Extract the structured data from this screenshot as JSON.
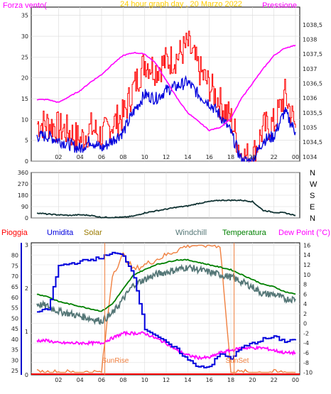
{
  "chart_data": [
    {
      "type": "line",
      "title": "24 hour graph day , 20 Marzo 2022",
      "ylabel_left": "Forza vento(",
      "ylabel_right": "Pressione",
      "x_ticks": [
        "02",
        "04",
        "06",
        "08",
        "10",
        "12",
        "14",
        "16",
        "18",
        "20",
        "22",
        "00"
      ],
      "x": [
        0,
        1,
        2,
        3,
        4,
        5,
        6,
        7,
        8,
        9,
        10,
        11,
        12,
        13,
        14,
        15,
        16,
        17,
        18,
        19,
        20,
        21,
        22,
        23,
        24
      ],
      "ylim_left": [
        0,
        37
      ],
      "yticks_left": [
        0,
        5,
        10,
        15,
        20,
        25,
        30,
        35
      ],
      "ylim_right": [
        1033.85,
        1039.1
      ],
      "yticks_right": [
        "1034",
        "1034,5",
        "1035",
        "1035,5",
        "1036",
        "1036,5",
        "1037",
        "1037,5",
        "1038",
        "1038,5"
      ],
      "yticks_right_values": [
        1034,
        1034.5,
        1035,
        1035.5,
        1036,
        1036.5,
        1037,
        1037.5,
        1038,
        1038.5
      ],
      "grid": true,
      "colors": {
        "gust": "#ff0000",
        "speed": "#0000dd",
        "pressure": "#ff00ff",
        "title": "#ffcc00"
      },
      "series": [
        {
          "key": "gust",
          "axis": "left",
          "values": [
            9,
            9,
            8,
            7,
            5,
            8,
            6,
            9,
            11,
            18,
            24,
            22,
            24,
            25,
            28,
            22,
            18,
            14,
            10,
            1,
            1,
            8,
            9,
            16,
            8
          ]
        },
        {
          "key": "speed",
          "axis": "left",
          "values": [
            6,
            6,
            5,
            4,
            3,
            5,
            3,
            5,
            7,
            12,
            16,
            15,
            17,
            18,
            19,
            16,
            14,
            11,
            7,
            0,
            0,
            5,
            6,
            12,
            7
          ]
        },
        {
          "key": "pressure",
          "axis": "right",
          "values": [
            1035.95,
            1035.95,
            1035.85,
            1036.05,
            1036.25,
            1036.55,
            1036.8,
            1037.15,
            1037.45,
            1037.55,
            1037.5,
            1037.2,
            1036.6,
            1036.0,
            1035.5,
            1035.2,
            1034.9,
            1035.0,
            1035.3,
            1036.0,
            1036.5,
            1037.0,
            1037.45,
            1037.7,
            1037.8
          ]
        }
      ]
    },
    {
      "type": "line",
      "x": [
        0,
        1,
        2,
        3,
        4,
        5,
        6,
        7,
        8,
        9,
        10,
        11,
        12,
        13,
        14,
        15,
        16,
        17,
        18,
        19,
        20,
        21,
        22,
        23,
        24
      ],
      "ylim": [
        0,
        360
      ],
      "yticks": [
        0,
        90,
        180,
        270,
        360
      ],
      "compass_labels": [
        "N",
        "W",
        "S",
        "E",
        "N"
      ],
      "grid": true,
      "colors": {
        "direction": "#113333"
      },
      "series": [
        {
          "key": "direction",
          "values": [
            40,
            30,
            25,
            20,
            25,
            20,
            5,
            5,
            5,
            15,
            40,
            55,
            70,
            85,
            95,
            115,
            130,
            140,
            140,
            140,
            130,
            60,
            45,
            40,
            20
          ]
        }
      ]
    },
    {
      "type": "line",
      "x_ticks": [
        "02",
        "04",
        "06",
        "08",
        "10",
        "12",
        "14",
        "16",
        "18",
        "20",
        "22",
        "00"
      ],
      "x": [
        0,
        1,
        2,
        3,
        4,
        5,
        6,
        7,
        8,
        9,
        10,
        11,
        12,
        13,
        14,
        15,
        16,
        17,
        18,
        19,
        20,
        21,
        22,
        23,
        24
      ],
      "legend": [
        "Pioggia",
        "Umidita",
        "Solar",
        "Windchill",
        "Temperatura",
        "Dew Point (°C)"
      ],
      "ylim_left": [
        23,
        86
      ],
      "yticks_left": [
        25,
        30,
        35,
        40,
        45,
        50,
        55,
        60,
        65,
        70,
        75,
        80
      ],
      "ylim_right": [
        -10.5,
        16.5
      ],
      "yticks_right": [
        -10,
        -8,
        -6,
        -4,
        -2,
        0,
        2,
        4,
        6,
        8,
        10,
        12,
        14,
        16
      ],
      "yticks_rain": [
        0,
        1,
        2,
        3
      ],
      "annotations": [
        "SunRise",
        "SunSet"
      ],
      "colors": {
        "rain": "#ff0000",
        "humidity": "#0000dd",
        "solar": "#f08040",
        "windchill": "#557777",
        "temperature": "#008000",
        "dewpoint": "#ff00ff"
      },
      "series": [
        {
          "key": "humidity",
          "axis": "left",
          "values": [
            53,
            54,
            75,
            76,
            77,
            78,
            79,
            81,
            80,
            70,
            45,
            42,
            38,
            35,
            30,
            27,
            27,
            33,
            31,
            36,
            38,
            40,
            41,
            39,
            40
          ]
        },
        {
          "key": "temperature",
          "axis": "right",
          "values": [
            6,
            5.5,
            4.5,
            4,
            3.5,
            3,
            2.5,
            4,
            7,
            10,
            11,
            12,
            12.5,
            13,
            13,
            12.5,
            12,
            11.5,
            11,
            10,
            9,
            8,
            7.5,
            6.5,
            6
          ]
        },
        {
          "key": "windchill",
          "axis": "right",
          "values": [
            4,
            3.5,
            2.5,
            2,
            1.5,
            1,
            0.5,
            2,
            5,
            8,
            9,
            10,
            10.5,
            11,
            11.5,
            11,
            10.5,
            10,
            9.5,
            8.5,
            7.5,
            6,
            6,
            5,
            5
          ]
        },
        {
          "key": "dewpoint",
          "axis": "right",
          "values": [
            -3.5,
            -3.5,
            -4,
            -4,
            -4,
            -4,
            -4,
            -3,
            -2,
            -2,
            -2,
            -3,
            -4,
            -5.5,
            -6.5,
            -7,
            -7,
            -6,
            -5.5,
            -5,
            -5,
            -5,
            -5.5,
            -6,
            -6
          ]
        },
        {
          "key": "solar",
          "axis": "right",
          "values": [
            -10,
            -10,
            -10,
            -10,
            -10,
            -10,
            -10,
            10,
            14,
            11,
            12,
            13,
            14,
            15,
            16,
            16,
            16,
            16,
            -10,
            -10,
            -10,
            -10,
            -10,
            -10,
            -10
          ]
        },
        {
          "key": "rain",
          "axis": "rain",
          "values": [
            0,
            0,
            0,
            0,
            0,
            0,
            0,
            0,
            0,
            0,
            0,
            0,
            0,
            0,
            0,
            0,
            0,
            0,
            0,
            0,
            0,
            0,
            0,
            0,
            0
          ]
        }
      ]
    }
  ]
}
